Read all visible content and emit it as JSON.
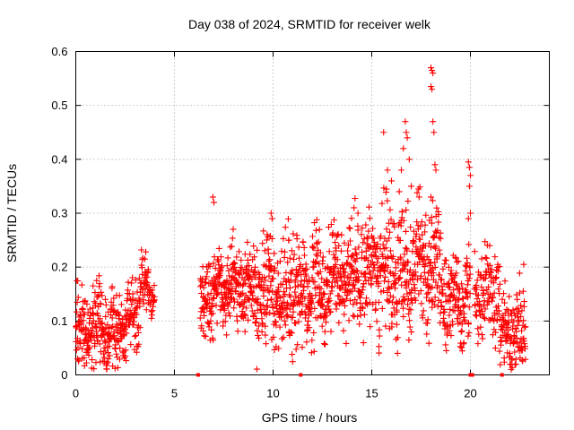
{
  "chart_data": {
    "type": "scatter",
    "title": "Day 038 of 2024, SRMTID for receiver welk",
    "xlabel": "GPS time / hours",
    "ylabel": "SRMTID / TECUs",
    "xlim": [
      0,
      24
    ],
    "ylim": [
      0,
      0.6
    ],
    "x_ticks": [
      0,
      5,
      10,
      15,
      20
    ],
    "x_tick_labels": [
      "0",
      "5",
      "10",
      "15",
      "20"
    ],
    "y_ticks": [
      0,
      0.1,
      0.2,
      0.3,
      0.4,
      0.5,
      0.6
    ],
    "y_tick_labels": [
      "0",
      "0.1",
      "0.2",
      "0.3",
      "0.4",
      "0.5",
      "0.6"
    ],
    "grid": true,
    "marker": "plus",
    "color": "#ff0000",
    "series": [
      {
        "name": "SRMTID",
        "segments": [
          {
            "x0": 0.0,
            "x1": 2.6,
            "base": 0.08,
            "spread": 0.035,
            "n": 260
          },
          {
            "x0": 2.6,
            "x1": 3.2,
            "base": 0.12,
            "spread": 0.035,
            "n": 50
          },
          {
            "x0": 3.2,
            "x1": 3.7,
            "base": 0.17,
            "spread": 0.03,
            "n": 45
          },
          {
            "x0": 3.7,
            "x1": 4.0,
            "base": 0.14,
            "spread": 0.02,
            "n": 25
          },
          {
            "x0": 6.3,
            "x1": 7.0,
            "base": 0.14,
            "spread": 0.035,
            "n": 70
          },
          {
            "x0": 7.0,
            "x1": 9.0,
            "base": 0.165,
            "spread": 0.035,
            "n": 200
          },
          {
            "x0": 9.0,
            "x1": 11.0,
            "base": 0.15,
            "spread": 0.05,
            "n": 200
          },
          {
            "x0": 11.0,
            "x1": 13.0,
            "base": 0.16,
            "spread": 0.05,
            "n": 200
          },
          {
            "x0": 13.0,
            "x1": 15.0,
            "base": 0.18,
            "spread": 0.05,
            "n": 200
          },
          {
            "x0": 15.0,
            "x1": 17.0,
            "base": 0.2,
            "spread": 0.06,
            "n": 200
          },
          {
            "x0": 17.0,
            "x1": 18.5,
            "base": 0.2,
            "spread": 0.06,
            "n": 150
          },
          {
            "x0": 18.5,
            "x1": 20.0,
            "base": 0.14,
            "spread": 0.04,
            "n": 140
          },
          {
            "x0": 20.2,
            "x1": 21.5,
            "base": 0.15,
            "spread": 0.04,
            "n": 110
          },
          {
            "x0": 21.5,
            "x1": 22.8,
            "base": 0.08,
            "spread": 0.04,
            "n": 120
          }
        ],
        "peaks": [
          {
            "x": 6.95,
            "y": 0.33
          },
          {
            "x": 7.0,
            "y": 0.32
          },
          {
            "x": 9.9,
            "y": 0.3
          },
          {
            "x": 9.95,
            "y": 0.29
          },
          {
            "x": 10.8,
            "y": 0.25
          },
          {
            "x": 14.1,
            "y": 0.31
          },
          {
            "x": 14.3,
            "y": 0.3
          },
          {
            "x": 15.6,
            "y": 0.45
          },
          {
            "x": 15.8,
            "y": 0.38
          },
          {
            "x": 16.0,
            "y": 0.36
          },
          {
            "x": 16.5,
            "y": 0.38
          },
          {
            "x": 16.6,
            "y": 0.42
          },
          {
            "x": 16.7,
            "y": 0.47
          },
          {
            "x": 16.75,
            "y": 0.45
          },
          {
            "x": 16.8,
            "y": 0.44
          },
          {
            "x": 16.9,
            "y": 0.4
          },
          {
            "x": 17.0,
            "y": 0.35
          },
          {
            "x": 17.4,
            "y": 0.33
          },
          {
            "x": 18.0,
            "y": 0.57
          },
          {
            "x": 18.05,
            "y": 0.565
          },
          {
            "x": 18.1,
            "y": 0.56
          },
          {
            "x": 18.0,
            "y": 0.535
          },
          {
            "x": 18.05,
            "y": 0.53
          },
          {
            "x": 18.1,
            "y": 0.47
          },
          {
            "x": 18.15,
            "y": 0.45
          },
          {
            "x": 18.2,
            "y": 0.39
          },
          {
            "x": 18.25,
            "y": 0.38
          },
          {
            "x": 18.0,
            "y": 0.33
          },
          {
            "x": 19.9,
            "y": 0.395
          },
          {
            "x": 19.95,
            "y": 0.385
          },
          {
            "x": 20.0,
            "y": 0.37
          },
          {
            "x": 19.95,
            "y": 0.35
          },
          {
            "x": 20.0,
            "y": 0.3
          },
          {
            "x": 19.9,
            "y": 0.29
          },
          {
            "x": 1.5,
            "y": 0.14
          },
          {
            "x": 1.8,
            "y": 0.135
          },
          {
            "x": 3.5,
            "y": 0.215
          },
          {
            "x": 22.1,
            "y": 0.03
          },
          {
            "x": 22.3,
            "y": 0.02
          },
          {
            "x": 22.7,
            "y": 0.205
          }
        ],
        "gap_markers": [
          6.2,
          11.4,
          20.0,
          20.1,
          21.6
        ]
      }
    ]
  }
}
